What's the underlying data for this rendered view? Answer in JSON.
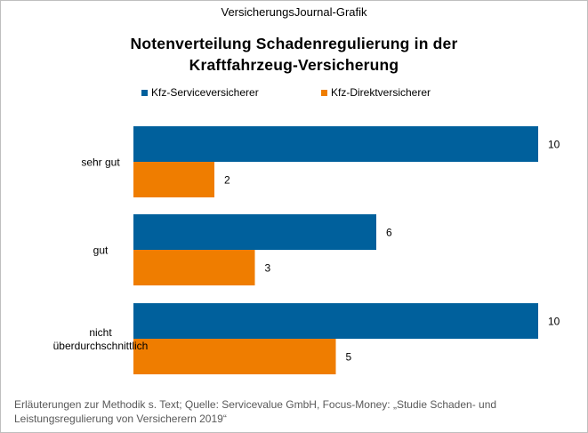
{
  "header": {
    "source_line": "VersicherungsJournal-Grafik",
    "title_line1": "Notenverteilung  Schadenregulierung  in der",
    "title_line2": "Kraftfahrzeug-Versicherung"
  },
  "legend": {
    "items": [
      {
        "label": "Kfz-Serviceversicherer",
        "color": "#00609c"
      },
      {
        "label": "Kfz-Direktversicherer",
        "color": "#ef7d00"
      }
    ]
  },
  "chart_data": {
    "type": "bar",
    "orientation": "horizontal",
    "title": "Notenverteilung Schadenregulierung in der Kraftfahrzeug-Versicherung",
    "categories": [
      [
        "sehr gut"
      ],
      [
        "gut"
      ],
      [
        "nicht",
        "überdurchschnittlich"
      ]
    ],
    "series": [
      {
        "name": "Kfz-Serviceversicherer",
        "color": "#00609c",
        "values": [
          10,
          6,
          10
        ]
      },
      {
        "name": "Kfz-Direktversicherer",
        "color": "#ef7d00",
        "values": [
          2,
          3,
          5
        ]
      }
    ],
    "xlim": [
      0,
      10
    ],
    "grid": false,
    "legend_position": "top",
    "data_labels": true
  },
  "footnote": {
    "line1": "Erläuterungen  zur Methodik s. Text; Quelle:  Servicevalue  GmbH, Focus-Money:  „Studie Schaden-  und",
    "line2": "Leistungsregulierung  von  Versicherern 2019“"
  }
}
